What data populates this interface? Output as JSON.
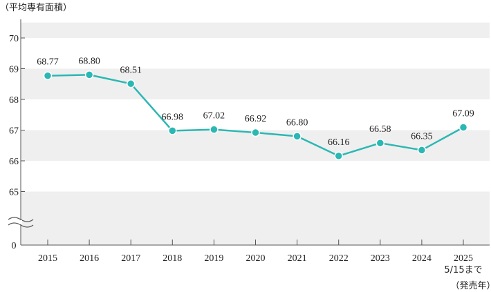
{
  "chart_data": {
    "type": "line",
    "ylabel": "（平均専有面積）",
    "categories": [
      "2015",
      "2016",
      "2017",
      "2018",
      "2019",
      "2020",
      "2021",
      "2022",
      "2023",
      "2024",
      "2025"
    ],
    "category_note": "5/15まで",
    "xlabel": "（発売年）",
    "values": [
      68.77,
      68.8,
      68.51,
      66.98,
      67.02,
      66.92,
      66.8,
      66.16,
      66.58,
      66.35,
      67.09
    ],
    "value_labels": [
      "68.77",
      "68.80",
      "68.51",
      "66.98",
      "67.02",
      "66.92",
      "66.80",
      "66.16",
      "66.58",
      "66.35",
      "67.09"
    ],
    "yticks": [
      "70",
      "69",
      "68",
      "67",
      "66",
      "65",
      "0"
    ],
    "ylim": [
      65,
      70.5
    ],
    "axis_break": true,
    "grid": true,
    "colors": {
      "line": "#2bb7b3",
      "band": "#efefef",
      "axis": "#555555"
    }
  }
}
